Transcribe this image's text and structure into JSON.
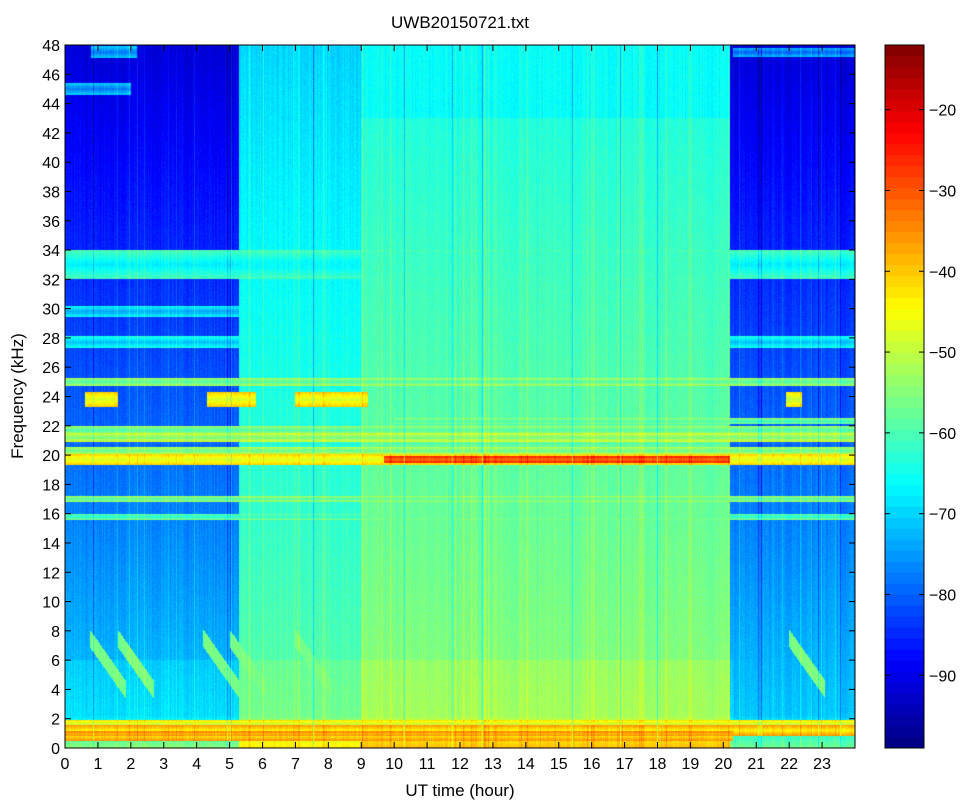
{
  "chart_data": {
    "type": "heatmap",
    "title": "UWB20150721.txt",
    "xlabel": "UT time (hour)",
    "ylabel": "Frequency (kHz)",
    "xlim": [
      0,
      24
    ],
    "ylim": [
      0,
      48
    ],
    "x_ticks": [
      0,
      1,
      2,
      3,
      4,
      5,
      6,
      7,
      8,
      9,
      10,
      11,
      12,
      13,
      14,
      15,
      16,
      17,
      18,
      19,
      20,
      21,
      22,
      23
    ],
    "y_ticks": [
      0,
      2,
      4,
      6,
      8,
      10,
      12,
      14,
      16,
      18,
      20,
      22,
      24,
      26,
      28,
      30,
      32,
      34,
      36,
      38,
      40,
      42,
      44,
      46,
      48
    ],
    "colorbar": {
      "colormap": "jet",
      "clim": [
        -99,
        -12
      ],
      "ticks": [
        -90,
        -80,
        -70,
        -60,
        -50,
        -40,
        -30,
        -20
      ]
    },
    "segments": [
      {
        "t0": 0.0,
        "t1": 2.8,
        "level": "quiet"
      },
      {
        "t0": 2.8,
        "t1": 3.2,
        "level": "quiet"
      },
      {
        "t0": 3.2,
        "t1": 5.3,
        "level": "quiet"
      },
      {
        "t0": 5.3,
        "t1": 6.1,
        "level": "elevated"
      },
      {
        "t0": 6.1,
        "t1": 9.0,
        "level": "elevated"
      },
      {
        "t0": 9.0,
        "t1": 20.2,
        "level": "high"
      },
      {
        "t0": 20.2,
        "t1": 24.0,
        "level": "quiet"
      }
    ],
    "bands": [
      {
        "f": 0.8,
        "t0": 0,
        "t1": 20.3,
        "dB": -42,
        "width": 0.35
      },
      {
        "f": 1.2,
        "t0": 0,
        "t1": 24,
        "dB": -44,
        "width": 0.35
      },
      {
        "f": 1.6,
        "t0": 0,
        "t1": 24,
        "dB": -50,
        "width": 0.3
      },
      {
        "f": 19.7,
        "t0": 0,
        "t1": 24,
        "dB": -48,
        "width": 0.4
      },
      {
        "f": 19.7,
        "t0": 9.7,
        "t1": 20.2,
        "dB": -32,
        "width": 0.25
      },
      {
        "f": 20.3,
        "t0": 0,
        "t1": 24,
        "dB": -58,
        "width": 0.25
      },
      {
        "f": 21.2,
        "t0": 0,
        "t1": 24,
        "dB": -56,
        "width": 0.3
      },
      {
        "f": 21.7,
        "t0": 0,
        "t1": 24,
        "dB": -60,
        "width": 0.3
      },
      {
        "f": 22.3,
        "t0": 10,
        "t1": 24,
        "dB": -62,
        "width": 0.2
      },
      {
        "f": 23.8,
        "t0": 0.6,
        "t1": 1.6,
        "dB": -48,
        "width": 0.5
      },
      {
        "f": 23.8,
        "t0": 4.3,
        "t1": 5.8,
        "dB": -48,
        "width": 0.5
      },
      {
        "f": 23.8,
        "t0": 7.0,
        "t1": 9.2,
        "dB": -48,
        "width": 0.5
      },
      {
        "f": 23.8,
        "t0": 21.9,
        "t1": 22.4,
        "dB": -50,
        "width": 0.5
      },
      {
        "f": 25.0,
        "t0": 0,
        "t1": 24,
        "dB": -60,
        "width": 0.25
      },
      {
        "f": 17.0,
        "t0": 0,
        "t1": 24,
        "dB": -60,
        "width": 0.2
      },
      {
        "f": 15.8,
        "t0": 0,
        "t1": 24,
        "dB": -64,
        "width": 0.2
      },
      {
        "f": 33.0,
        "t0": 0,
        "t1": 24,
        "dB": -68,
        "width": 1.0
      },
      {
        "f": 29.8,
        "t0": 0,
        "t1": 5.3,
        "dB": -74,
        "width": 0.4
      },
      {
        "f": 27.7,
        "t0": 0,
        "t1": 24,
        "dB": -72,
        "width": 0.4
      },
      {
        "f": 47.5,
        "t0": 0.8,
        "t1": 2.2,
        "dB": -78,
        "width": 0.4
      },
      {
        "f": 47.5,
        "t0": 20.3,
        "t1": 24,
        "dB": -80,
        "width": 0.3
      },
      {
        "f": 45.0,
        "t0": 0,
        "t1": 2,
        "dB": -78,
        "width": 0.4
      }
    ]
  }
}
